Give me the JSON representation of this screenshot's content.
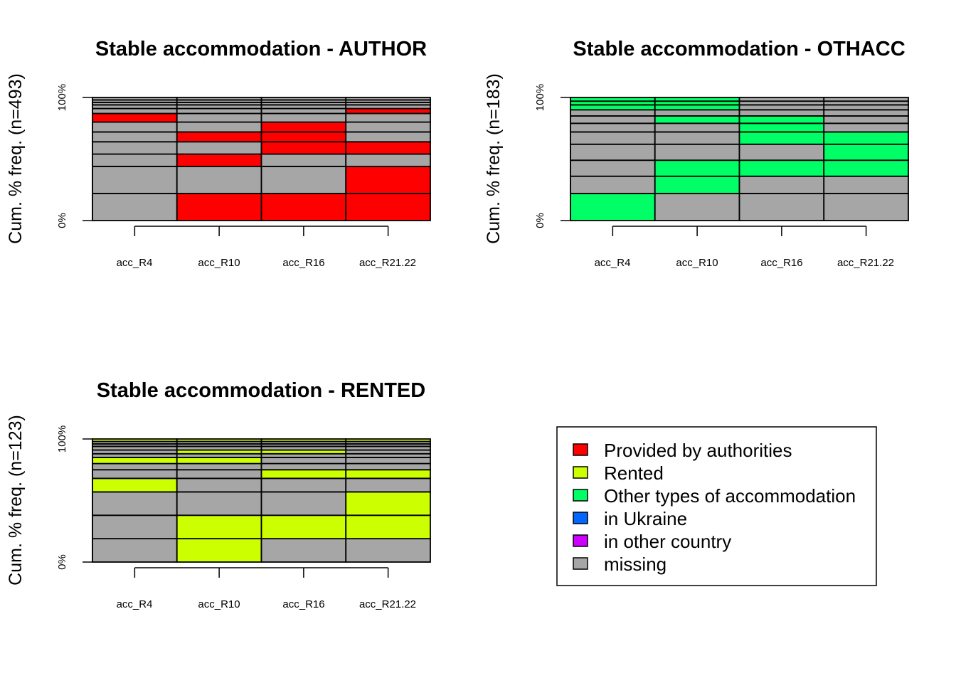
{
  "colors": {
    "Provided by authorities": "#FF0000",
    "Rented": "#CCFF00",
    "Other types of accommodation": "#00FF66",
    "in Ukraine": "#0066FF",
    "in other country": "#CC00FF",
    "missing": "#A6A6A6"
  },
  "legend": {
    "items": [
      {
        "label": "Provided by authorities",
        "color": "#FF0000"
      },
      {
        "label": "Rented",
        "color": "#CCFF00"
      },
      {
        "label": "Other types of accommodation",
        "color": "#00FF66"
      },
      {
        "label": "in Ukraine",
        "color": "#0066FF"
      },
      {
        "label": "in other country",
        "color": "#CC00FF"
      },
      {
        "label": "missing",
        "color": "#A6A6A6"
      }
    ]
  },
  "chart_data": [
    {
      "type": "bar",
      "subtype": "stacked sequence (cumulative %)",
      "title": "Stable accommodation -  AUTHOR",
      "ylabel": "Cum. % freq. (n=493)",
      "yticks": [
        "0%",
        "100%"
      ],
      "categories": [
        "acc_R4",
        "acc_R10",
        "acc_R16",
        "acc_R21.22"
      ],
      "accent": "Provided by authorities",
      "sequences": [
        {
          "pct": 22,
          "states": [
            "missing",
            "Provided by authorities",
            "Provided by authorities",
            "Provided by authorities"
          ]
        },
        {
          "pct": 22,
          "states": [
            "missing",
            "missing",
            "missing",
            "Provided by authorities"
          ]
        },
        {
          "pct": 10,
          "states": [
            "missing",
            "Provided by authorities",
            "missing",
            "missing"
          ]
        },
        {
          "pct": 10,
          "states": [
            "missing",
            "missing",
            "Provided by authorities",
            "Provided by authorities"
          ]
        },
        {
          "pct": 8,
          "states": [
            "missing",
            "Provided by authorities",
            "Provided by authorities",
            "missing"
          ]
        },
        {
          "pct": 8,
          "states": [
            "missing",
            "missing",
            "Provided by authorities",
            "missing"
          ]
        },
        {
          "pct": 7,
          "states": [
            "Provided by authorities",
            "missing",
            "missing",
            "missing"
          ]
        },
        {
          "pct": 4,
          "states": [
            "missing",
            "missing",
            "missing",
            "Provided by authorities"
          ]
        },
        {
          "pct": 3,
          "states": [
            "missing",
            "missing",
            "missing",
            "missing"
          ]
        },
        {
          "pct": 2,
          "states": [
            "missing",
            "missing",
            "missing",
            "missing"
          ]
        },
        {
          "pct": 2,
          "states": [
            "missing",
            "missing",
            "missing",
            "missing"
          ]
        },
        {
          "pct": 2,
          "states": [
            "missing",
            "missing",
            "missing",
            "missing"
          ]
        }
      ]
    },
    {
      "type": "bar",
      "subtype": "stacked sequence (cumulative %)",
      "title": "Stable accommodation -  OTHACC",
      "ylabel": "Cum. % freq. (n=183)",
      "yticks": [
        "0%",
        "100%"
      ],
      "categories": [
        "acc_R4",
        "acc_R10",
        "acc_R16",
        "acc_R21.22"
      ],
      "accent": "Other types of accommodation",
      "sequences": [
        {
          "pct": 22,
          "states": [
            "Other types of accommodation",
            "missing",
            "missing",
            "missing"
          ]
        },
        {
          "pct": 14,
          "states": [
            "missing",
            "Other types of accommodation",
            "missing",
            "missing"
          ]
        },
        {
          "pct": 13,
          "states": [
            "missing",
            "Other types of accommodation",
            "Other types of accommodation",
            "Other types of accommodation"
          ]
        },
        {
          "pct": 13,
          "states": [
            "missing",
            "missing",
            "missing",
            "Other types of accommodation"
          ]
        },
        {
          "pct": 10,
          "states": [
            "missing",
            "missing",
            "Other types of accommodation",
            "Other types of accommodation"
          ]
        },
        {
          "pct": 7,
          "states": [
            "missing",
            "missing",
            "Other types of accommodation",
            "missing"
          ]
        },
        {
          "pct": 6,
          "states": [
            "missing",
            "Other types of accommodation",
            "Other types of accommodation",
            "missing"
          ]
        },
        {
          "pct": 5,
          "states": [
            "missing",
            "missing",
            "missing",
            "missing"
          ]
        },
        {
          "pct": 4,
          "states": [
            "Other types of accommodation",
            "Other types of accommodation",
            "missing",
            "missing"
          ]
        },
        {
          "pct": 3,
          "states": [
            "Other types of accommodation",
            "Other types of accommodation",
            "missing",
            "missing"
          ]
        },
        {
          "pct": 3,
          "states": [
            "Other types of accommodation",
            "Other types of accommodation",
            "missing",
            "missing"
          ]
        }
      ]
    },
    {
      "type": "bar",
      "subtype": "stacked sequence (cumulative %)",
      "title": "Stable accommodation -  RENTED",
      "ylabel": "Cum. % freq. (n=123)",
      "yticks": [
        "0%",
        "100%"
      ],
      "categories": [
        "acc_R4",
        "acc_R10",
        "acc_R16",
        "acc_R21.22"
      ],
      "accent": "Rented",
      "sequences": [
        {
          "pct": 19,
          "states": [
            "missing",
            "Rented",
            "missing",
            "missing"
          ]
        },
        {
          "pct": 19,
          "states": [
            "missing",
            "Rented",
            "Rented",
            "Rented"
          ]
        },
        {
          "pct": 19,
          "states": [
            "missing",
            "missing",
            "missing",
            "Rented"
          ]
        },
        {
          "pct": 11,
          "states": [
            "Rented",
            "missing",
            "missing",
            "missing"
          ]
        },
        {
          "pct": 7,
          "states": [
            "missing",
            "missing",
            "Rented",
            "Rented"
          ]
        },
        {
          "pct": 5,
          "states": [
            "missing",
            "missing",
            "missing",
            "missing"
          ]
        },
        {
          "pct": 5,
          "states": [
            "Rented",
            "Rented",
            "missing",
            "missing"
          ]
        },
        {
          "pct": 3,
          "states": [
            "missing",
            "missing",
            "missing",
            "missing"
          ]
        },
        {
          "pct": 3,
          "states": [
            "missing",
            "Rented",
            "Rented",
            "missing"
          ]
        },
        {
          "pct": 3,
          "states": [
            "missing",
            "missing",
            "missing",
            "missing"
          ]
        },
        {
          "pct": 2,
          "states": [
            "missing",
            "missing",
            "missing",
            "missing"
          ]
        },
        {
          "pct": 2,
          "states": [
            "missing",
            "missing",
            "missing",
            "missing"
          ]
        },
        {
          "pct": 2,
          "states": [
            "Rented",
            "Rented",
            "Rented",
            "Rented"
          ]
        }
      ]
    }
  ]
}
